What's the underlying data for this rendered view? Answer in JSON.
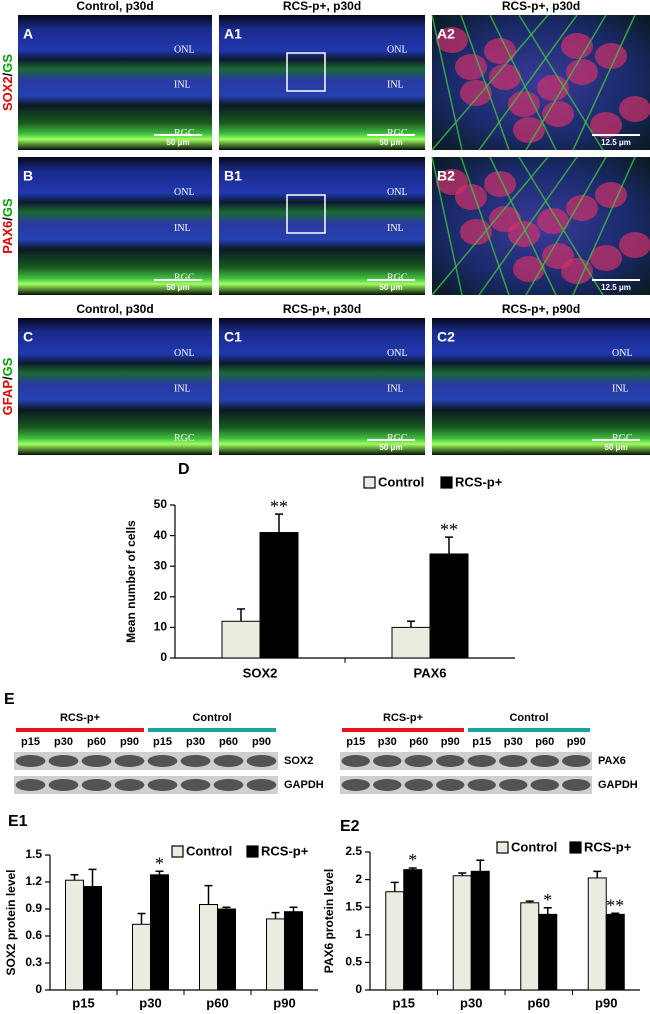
{
  "figure_panels": {
    "row_labels": [
      [
        {
          "text": "SOX2",
          "color": "#e00000"
        },
        {
          "text": "/",
          "color": "#000000"
        },
        {
          "text": "GS",
          "color": "#00a000"
        }
      ],
      [
        {
          "text": "PAX6",
          "color": "#e00000"
        },
        {
          "text": "/",
          "color": "#000000"
        },
        {
          "text": "GS",
          "color": "#00a000"
        }
      ],
      [
        {
          "text": "GFAP",
          "color": "#e00000"
        },
        {
          "text": "/",
          "color": "#000000"
        },
        {
          "text": "GS",
          "color": "#00a000"
        }
      ]
    ],
    "panels": [
      {
        "label": "A",
        "title": "Control, p30d",
        "layers": [
          "ONL",
          "INL",
          "RGC"
        ],
        "scale_bar": "50 μm"
      },
      {
        "label": "A1",
        "title": "RCS-p+, p30d",
        "layers": [
          "ONL",
          "INL",
          "RGC"
        ],
        "scale_bar": "50 μm"
      },
      {
        "label": "A2",
        "title": "RCS-p+, p30d",
        "scale_bar": "12.5 μm"
      },
      {
        "label": "B",
        "layers": [
          "ONL",
          "INL",
          "RGC"
        ],
        "scale_bar": "50 μm"
      },
      {
        "label": "B1",
        "layers": [
          "ONL",
          "INL",
          "RGC"
        ],
        "scale_bar": "50 μm"
      },
      {
        "label": "B2",
        "scale_bar": "12.5 μm"
      },
      {
        "label": "C",
        "title": "Control, p30d",
        "layers": [
          "ONL",
          "INL",
          "RGC"
        ]
      },
      {
        "label": "C1",
        "title": "RCS-p+, p30d",
        "layers": [
          "ONL",
          "INL",
          "RGC"
        ],
        "scale_bar": "50 μm"
      },
      {
        "label": "C2",
        "title": "RCS-p+, p90d",
        "layers": [
          "ONL",
          "INL",
          "RGC"
        ],
        "scale_bar": "50 μm"
      }
    ]
  },
  "blots": {
    "label": "E",
    "panels": [
      {
        "groups": [
          {
            "name": "RCS-p+",
            "color": "#e8141c",
            "lanes": [
              "p15",
              "p30",
              "p60",
              "p90"
            ]
          },
          {
            "name": "Control",
            "color": "#1aa39a",
            "lanes": [
              "p15",
              "p30",
              "p60",
              "p90"
            ]
          }
        ],
        "proteins": [
          "SOX2",
          "GAPDH"
        ]
      },
      {
        "groups": [
          {
            "name": "RCS-p+",
            "color": "#e8141c",
            "lanes": [
              "p15",
              "p30",
              "p60",
              "p90"
            ]
          },
          {
            "name": "Control",
            "color": "#1aa39a",
            "lanes": [
              "p15",
              "p30",
              "p60",
              "p90"
            ]
          }
        ],
        "proteins": [
          "PAX6",
          "GAPDH"
        ]
      }
    ]
  },
  "chart_data": [
    {
      "type": "bar",
      "panel": "D",
      "y_label": "Mean number of cells",
      "categories": [
        "SOX2",
        "PAX6"
      ],
      "series": [
        {
          "name": "Control",
          "color": "#ecebe0",
          "values": [
            12,
            10
          ],
          "errors": [
            4,
            2
          ]
        },
        {
          "name": "RCS-p+",
          "color": "#000000",
          "values": [
            41,
            34
          ],
          "errors": [
            6,
            5.5
          ],
          "labels": [
            "**",
            "**"
          ]
        }
      ],
      "ylim": [
        0,
        50
      ],
      "yticks": [
        0,
        10,
        20,
        30,
        40,
        50
      ]
    },
    {
      "type": "bar",
      "panel": "E1",
      "y_label": "SOX2 protein level",
      "categories": [
        "p15",
        "p30",
        "p60",
        "p90"
      ],
      "series": [
        {
          "name": "Control",
          "color": "#ecebe0",
          "values": [
            1.22,
            0.73,
            0.95,
            0.79
          ],
          "errors": [
            0.06,
            0.12,
            0.21,
            0.07
          ]
        },
        {
          "name": "RCS-p+",
          "color": "#000000",
          "values": [
            1.15,
            1.28,
            0.9,
            0.87
          ],
          "errors": [
            0.19,
            0.04,
            0.02,
            0.05
          ],
          "labels": [
            null,
            "*",
            null,
            null
          ]
        }
      ],
      "ylim": [
        0,
        1.5
      ],
      "yticks": [
        0,
        0.3,
        0.6,
        0.9,
        1.2,
        1.5
      ]
    },
    {
      "type": "bar",
      "panel": "E2",
      "y_label": "PAX6 protein level",
      "categories": [
        "p15",
        "p30",
        "p60",
        "p90"
      ],
      "series": [
        {
          "name": "Control",
          "color": "#ecebe0",
          "values": [
            1.78,
            2.07,
            1.58,
            2.03
          ],
          "errors": [
            0.17,
            0.05,
            0.03,
            0.12
          ]
        },
        {
          "name": "RCS-p+",
          "color": "#000000",
          "values": [
            2.18,
            2.15,
            1.37,
            1.37
          ],
          "errors": [
            0.03,
            0.2,
            0.12,
            0.02
          ],
          "labels": [
            "*",
            null,
            "*",
            "**"
          ]
        }
      ],
      "ylim": [
        0,
        2.5
      ],
      "yticks": [
        0,
        0.5,
        1,
        1.5,
        2,
        2.5
      ]
    }
  ]
}
